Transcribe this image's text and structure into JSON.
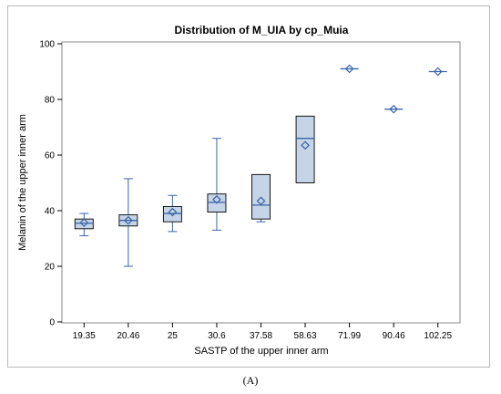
{
  "panel_label": "(A)",
  "chart_data": {
    "type": "box",
    "title": "Distribution of M_UIA by cp_Muia",
    "xlabel": "SASTP of the upper inner arm",
    "ylabel": "Melanin of the upper inner arm",
    "ylim": [
      0,
      100
    ],
    "yticks": [
      0,
      20,
      40,
      60,
      80,
      100
    ],
    "grid": false,
    "colors": {
      "box_fill": "#c5d4e6",
      "stroke": "#3a64a8"
    },
    "categories": [
      "19.35",
      "20.46",
      "25",
      "30.6",
      "37.58",
      "58.63",
      "71.99",
      "90.46",
      "102.25"
    ],
    "boxes": [
      {
        "min": 31,
        "q1": 33.5,
        "median": 35.5,
        "q3": 37,
        "max": 39,
        "mean": 35.7
      },
      {
        "min": 20,
        "q1": 34.5,
        "median": 36.5,
        "q3": 38.5,
        "max": 51.5,
        "mean": 36.5
      },
      {
        "min": 32.5,
        "q1": 36,
        "median": 39,
        "q3": 41.5,
        "max": 45.5,
        "mean": 39.5
      },
      {
        "min": 33,
        "q1": 39.5,
        "median": 43,
        "q3": 46,
        "max": 66,
        "mean": 44
      },
      {
        "min": 36,
        "q1": 37,
        "median": 42,
        "q3": 53,
        "max": 53,
        "mean": 43.5
      },
      {
        "min": 50,
        "q1": 50,
        "median": 66,
        "q3": 74,
        "max": 74,
        "mean": 63.5
      },
      {
        "min": 91,
        "q1": 91,
        "median": 91,
        "q3": 91,
        "max": 91,
        "mean": 91
      },
      {
        "min": 76.5,
        "q1": 76.5,
        "median": 76.5,
        "q3": 76.5,
        "max": 76.5,
        "mean": 76.5
      },
      {
        "min": 90,
        "q1": 90,
        "median": 90,
        "q3": 90,
        "max": 90,
        "mean": 90
      }
    ]
  }
}
